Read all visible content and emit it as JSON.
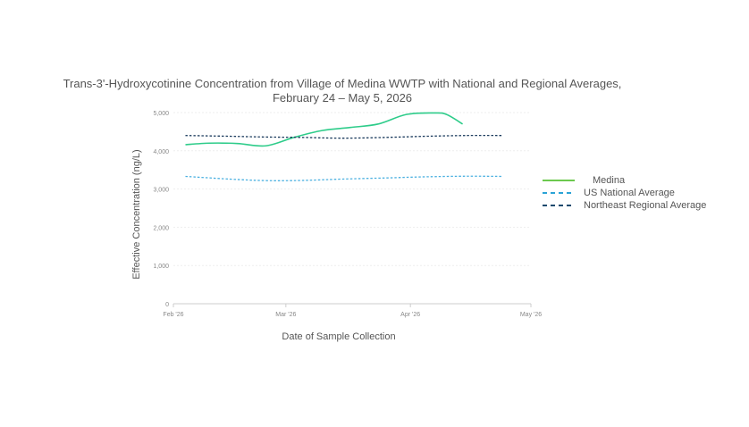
{
  "chart_data": {
    "type": "line",
    "title_line1": "Trans-3'-Hydroxycotinine Concentration from Village of Medina WWTP with National and Regional Averages,",
    "title_line2": "February 24 – May 5, 2026",
    "xlabel": "Date of Sample Collection",
    "ylabel": "Effective Concentration (ng/L)",
    "x_ticks": [
      "Feb '26",
      "Mar '26",
      "Apr '26",
      "May '26"
    ],
    "x_tick_dates": [
      "2026-02-01",
      "2026-03-01",
      "2026-04-01",
      "2026-05-01"
    ],
    "y_ticks": [
      "0",
      "1,000",
      "2,000",
      "3,000",
      "4,000",
      "5,000"
    ],
    "y_tick_values": [
      0,
      1000,
      2000,
      3000,
      4000,
      5000
    ],
    "xlim": [
      "2026-02-01",
      "2026-05-01"
    ],
    "ylim": [
      0,
      5000
    ],
    "grid": true,
    "legend_position": "right",
    "series": [
      {
        "name": "Medina",
        "color": "#2ecc8a",
        "dash": "solid",
        "points": [
          {
            "x": "2026-02-04",
            "y": 4160
          },
          {
            "x": "2026-02-10",
            "y": 4200
          },
          {
            "x": "2026-02-17",
            "y": 4190
          },
          {
            "x": "2026-02-24",
            "y": 4130
          },
          {
            "x": "2026-03-03",
            "y": 4350
          },
          {
            "x": "2026-03-10",
            "y": 4530
          },
          {
            "x": "2026-03-17",
            "y": 4610
          },
          {
            "x": "2026-03-24",
            "y": 4700
          },
          {
            "x": "2026-03-31",
            "y": 4950
          },
          {
            "x": "2026-04-07",
            "y": 4990
          },
          {
            "x": "2026-04-10",
            "y": 4950
          },
          {
            "x": "2026-04-14",
            "y": 4700
          }
        ]
      },
      {
        "name": "US National Average",
        "color": "#4ab0e0",
        "dash": "dashed",
        "points": [
          {
            "x": "2026-02-04",
            "y": 3330
          },
          {
            "x": "2026-02-15",
            "y": 3260
          },
          {
            "x": "2026-02-24",
            "y": 3220
          },
          {
            "x": "2026-03-05",
            "y": 3225
          },
          {
            "x": "2026-03-15",
            "y": 3260
          },
          {
            "x": "2026-03-26",
            "y": 3290
          },
          {
            "x": "2026-04-05",
            "y": 3320
          },
          {
            "x": "2026-04-15",
            "y": 3335
          },
          {
            "x": "2026-04-24",
            "y": 3330
          }
        ]
      },
      {
        "name": "Northeast Regional Average",
        "color": "#1a3a5c",
        "dash": "dashed",
        "points": [
          {
            "x": "2026-02-04",
            "y": 4400
          },
          {
            "x": "2026-02-15",
            "y": 4380
          },
          {
            "x": "2026-02-24",
            "y": 4360
          },
          {
            "x": "2026-03-05",
            "y": 4350
          },
          {
            "x": "2026-03-15",
            "y": 4330
          },
          {
            "x": "2026-03-26",
            "y": 4350
          },
          {
            "x": "2026-04-05",
            "y": 4380
          },
          {
            "x": "2026-04-15",
            "y": 4400
          },
          {
            "x": "2026-04-24",
            "y": 4400
          }
        ]
      }
    ]
  },
  "legend": {
    "items": [
      {
        "label": "Medina",
        "color": "#6cc94f",
        "dash": "solid"
      },
      {
        "label": "US National Average",
        "color": "#2aa3d6",
        "dash": "dashed"
      },
      {
        "label": "Northeast Regional Average",
        "color": "#1a4a6e",
        "dash": "dashed"
      }
    ]
  }
}
